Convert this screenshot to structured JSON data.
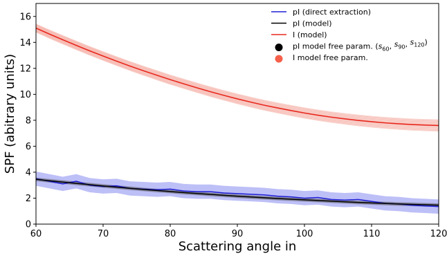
{
  "chart_data": {
    "type": "line",
    "xlabel": "Scattering angle in",
    "ylabel": "SPF (abitrary units)",
    "xlim": [
      60,
      120
    ],
    "ylim": [
      0,
      17
    ],
    "xticks": [
      "60",
      "70",
      "80",
      "90",
      "100",
      "110",
      "120"
    ],
    "yticks": [
      "0",
      "2",
      "4",
      "6",
      "8",
      "10",
      "12",
      "14",
      "16"
    ],
    "grid": false,
    "legend_position": "top-right",
    "x": [
      60,
      62,
      64,
      66,
      68,
      70,
      72,
      74,
      76,
      78,
      80,
      82,
      84,
      86,
      88,
      90,
      92,
      94,
      96,
      98,
      100,
      102,
      104,
      106,
      108,
      110,
      112,
      114,
      116,
      118,
      120
    ],
    "series": [
      {
        "name": "pI (direct extraction)",
        "color": "#1f1fd6",
        "values": [
          3.5,
          3.3,
          3.1,
          3.3,
          3.0,
          2.9,
          2.95,
          2.75,
          2.7,
          2.65,
          2.7,
          2.55,
          2.5,
          2.5,
          2.4,
          2.35,
          2.3,
          2.25,
          2.15,
          2.1,
          2.0,
          2.05,
          1.9,
          1.85,
          1.9,
          1.75,
          1.6,
          1.55,
          1.45,
          1.4,
          1.35
        ],
        "band_halfwidth": 0.55
      },
      {
        "name": "pI (model)",
        "color": "#000000",
        "values": [
          3.45,
          3.34,
          3.24,
          3.14,
          3.04,
          2.94,
          2.85,
          2.76,
          2.67,
          2.59,
          2.51,
          2.43,
          2.36,
          2.29,
          2.22,
          2.15,
          2.09,
          2.03,
          1.97,
          1.92,
          1.87,
          1.82,
          1.77,
          1.72,
          1.67,
          1.63,
          1.59,
          1.55,
          1.52,
          1.49,
          1.46
        ]
      },
      {
        "name": "I (model)",
        "color": "#e8281e",
        "values": [
          15.1,
          14.64,
          14.2,
          13.77,
          13.35,
          12.95,
          12.56,
          12.18,
          11.82,
          11.47,
          11.13,
          10.81,
          10.5,
          10.2,
          9.92,
          9.65,
          9.4,
          9.16,
          8.95,
          8.75,
          8.56,
          8.39,
          8.24,
          8.11,
          7.99,
          7.89,
          7.8,
          7.73,
          7.67,
          7.63,
          7.6
        ]
      }
    ],
    "legend": [
      {
        "kind": "line",
        "label": "pI (direct extraction)",
        "color": "#1f1fd6"
      },
      {
        "kind": "line",
        "label": "pI (model)",
        "color": "#000000"
      },
      {
        "kind": "line",
        "label": "I (model)",
        "color": "#e8281e"
      },
      {
        "kind": "dot",
        "label": "pI model free param. (s60, s90, s120)",
        "color": "#000000"
      },
      {
        "kind": "dot",
        "label": "I model free param.",
        "color": "#f6604a"
      }
    ],
    "sample_curves_color": "#f08a7a"
  }
}
